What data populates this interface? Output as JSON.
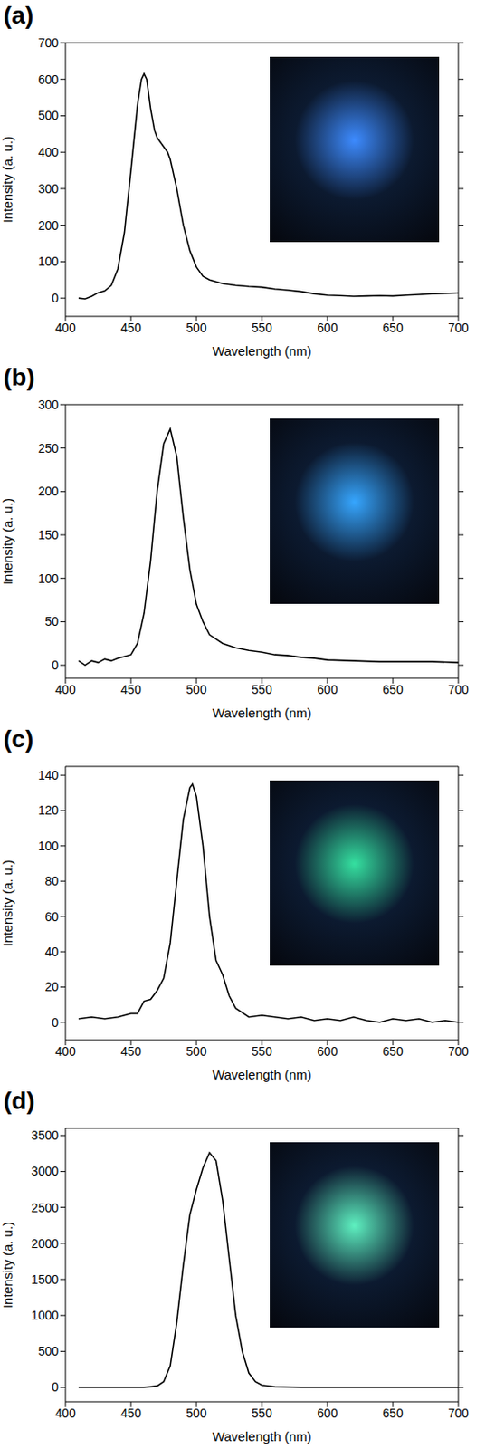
{
  "chart_data": [
    {
      "type": "line",
      "title": "(a)",
      "x_label": "Wavelength (nm)",
      "y_label": "Intensity (a. u.)",
      "color": "#000000",
      "xlim": [
        400,
        700
      ],
      "xticks": [
        400,
        450,
        500,
        550,
        600,
        650,
        700
      ],
      "ylim": [
        -50,
        700
      ],
      "yticks": [
        0,
        100,
        200,
        300,
        400,
        500,
        600,
        700
      ],
      "x": [
        410,
        415,
        420,
        425,
        430,
        435,
        440,
        445,
        450,
        455,
        458,
        460,
        462,
        465,
        468,
        470,
        475,
        478,
        480,
        485,
        490,
        495,
        500,
        505,
        510,
        520,
        530,
        540,
        550,
        560,
        570,
        580,
        590,
        600,
        610,
        620,
        630,
        640,
        650,
        660,
        670,
        680,
        690,
        700
      ],
      "values": [
        0,
        -2,
        5,
        15,
        20,
        35,
        80,
        180,
        350,
        530,
        600,
        615,
        600,
        520,
        460,
        440,
        415,
        400,
        380,
        300,
        200,
        130,
        85,
        60,
        50,
        40,
        35,
        32,
        30,
        25,
        22,
        18,
        12,
        8,
        7,
        5,
        6,
        7,
        6,
        8,
        10,
        12,
        13,
        14
      ]
    },
    {
      "type": "line",
      "title": "(b)",
      "x_label": "Wavelength (nm)",
      "y_label": "Intensity (a. u.)",
      "color": "#000000",
      "xlim": [
        400,
        700
      ],
      "xticks": [
        400,
        450,
        500,
        550,
        600,
        650,
        700
      ],
      "ylim": [
        -15,
        300
      ],
      "yticks": [
        0,
        50,
        100,
        150,
        200,
        250,
        300
      ],
      "x": [
        410,
        415,
        420,
        425,
        430,
        435,
        440,
        445,
        450,
        455,
        460,
        465,
        470,
        475,
        480,
        485,
        490,
        495,
        500,
        505,
        510,
        520,
        530,
        540,
        550,
        560,
        570,
        580,
        590,
        600,
        620,
        640,
        660,
        680,
        700
      ],
      "values": [
        5,
        0,
        5,
        3,
        7,
        5,
        8,
        10,
        12,
        25,
        60,
        120,
        200,
        255,
        272,
        240,
        170,
        110,
        70,
        50,
        35,
        25,
        20,
        17,
        15,
        12,
        11,
        9,
        8,
        6,
        5,
        4,
        4,
        4,
        3
      ]
    },
    {
      "type": "line",
      "title": "(c)",
      "x_label": "Wavelength (nm)",
      "y_label": "Intensity (a. u.)",
      "color": "#000000",
      "xlim": [
        400,
        700
      ],
      "xticks": [
        400,
        450,
        500,
        550,
        600,
        650,
        700
      ],
      "ylim": [
        -10,
        145
      ],
      "yticks": [
        0,
        20,
        40,
        60,
        80,
        100,
        120,
        140
      ],
      "x": [
        410,
        420,
        430,
        440,
        445,
        450,
        455,
        460,
        465,
        470,
        475,
        480,
        485,
        490,
        495,
        497,
        500,
        505,
        510,
        515,
        520,
        525,
        530,
        540,
        550,
        560,
        570,
        580,
        590,
        600,
        610,
        620,
        630,
        640,
        650,
        660,
        670,
        680,
        690,
        700
      ],
      "values": [
        2,
        3,
        2,
        3,
        4,
        5,
        5,
        12,
        13,
        18,
        25,
        45,
        80,
        115,
        133,
        135,
        128,
        100,
        60,
        35,
        27,
        15,
        8,
        3,
        4,
        3,
        2,
        3,
        1,
        2,
        1,
        3,
        1,
        0,
        2,
        1,
        2,
        0,
        1,
        0
      ]
    },
    {
      "type": "line",
      "title": "(d)",
      "x_label": "Wavelength (nm)",
      "y_label": "Intensity (a. u.)",
      "color": "#000000",
      "xlim": [
        400,
        700
      ],
      "xticks": [
        400,
        450,
        500,
        550,
        600,
        650,
        700
      ],
      "ylim": [
        -200,
        3600
      ],
      "yticks": [
        0,
        500,
        1000,
        1500,
        2000,
        2500,
        3000,
        3500
      ],
      "x": [
        410,
        450,
        460,
        470,
        475,
        480,
        485,
        490,
        495,
        500,
        505,
        510,
        515,
        520,
        525,
        530,
        535,
        540,
        545,
        550,
        560,
        580,
        600,
        650,
        700
      ],
      "values": [
        0,
        0,
        0,
        20,
        80,
        300,
        900,
        1700,
        2400,
        2750,
        3050,
        3260,
        3150,
        2600,
        1800,
        1000,
        500,
        200,
        80,
        30,
        10,
        0,
        0,
        0,
        0
      ]
    }
  ]
}
